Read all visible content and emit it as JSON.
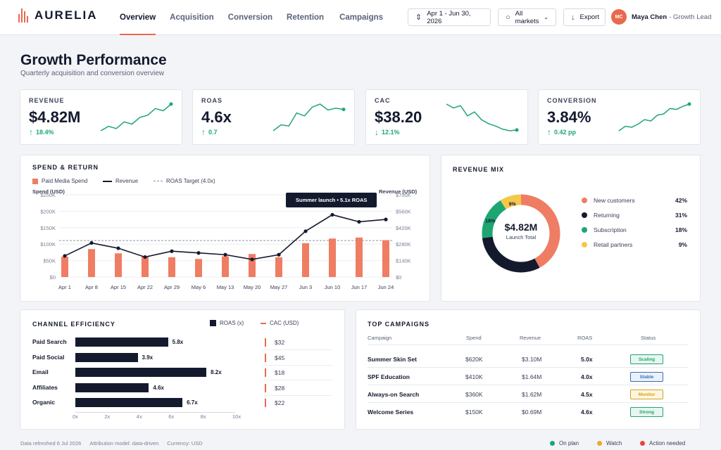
{
  "brand": {
    "name": "AURELIA",
    "accent": "#e8694d",
    "dark": "#141a2e"
  },
  "nav": {
    "tabs": [
      {
        "label": "Overview",
        "active": true
      },
      {
        "label": "Acquisition",
        "active": false
      },
      {
        "label": "Conversion",
        "active": false
      },
      {
        "label": "Retention",
        "active": false
      },
      {
        "label": "Campaigns",
        "active": false
      }
    ]
  },
  "controls": {
    "date_range": "Apr 1 - Jun 30, 2026",
    "market": "All markets",
    "export": "Export"
  },
  "user": {
    "initials": "MC",
    "name": "Maya Chen",
    "role": "- Growth Lead"
  },
  "page": {
    "title": "Growth Performance",
    "subtitle": "Quarterly acquisition and conversion overview"
  },
  "kpis": [
    {
      "label": "REVENUE",
      "value": "$4.82M",
      "delta": "18.4%",
      "direction": "up",
      "color": "#1ea672",
      "spark": [
        2,
        3,
        2.5,
        4,
        3.5,
        5,
        5.5,
        7,
        6.5,
        8
      ]
    },
    {
      "label": "ROAS",
      "value": "4.6x",
      "delta": "0.7",
      "direction": "up",
      "color": "#1ea672",
      "spark": [
        2,
        3,
        2.8,
        5,
        4.5,
        6,
        6.5,
        5.5,
        5.8,
        5.6
      ]
    },
    {
      "label": "CAC",
      "value": "$38.20",
      "delta": "12.1%",
      "direction": "down",
      "color": "#1ea672",
      "spark": [
        8,
        7.5,
        7.8,
        6.5,
        7,
        6,
        5.5,
        5.2,
        4.8,
        4.6,
        4.7
      ]
    },
    {
      "label": "CONVERSION",
      "value": "3.84%",
      "delta": "0.42 pp",
      "direction": "up",
      "color": "#1ea672",
      "spark": [
        2,
        3,
        2.8,
        3.5,
        4.5,
        4.2,
        5.5,
        5.8,
        7,
        6.8,
        7.5,
        8
      ]
    }
  ],
  "spend_return": {
    "title": "SPEND & RETURN",
    "legend": {
      "spend": "Paid Media Spend",
      "revenue": "Revenue",
      "target": "ROAS Target (4.0x)"
    },
    "left_axis_title": "Spend (USD)",
    "right_axis_title": "Revenue (USD)",
    "tooltip": "Summer launch • 5.1x ROAS",
    "left_ticks": [
      "$0",
      "$50K",
      "$100K",
      "$150K",
      "$200K",
      "$250K"
    ],
    "right_ticks": [
      "$0",
      "$140K",
      "$280K",
      "$420K",
      "$560K",
      "$700K"
    ]
  },
  "chart_data": {
    "type": "bar",
    "categories": [
      "Apr 1",
      "Apr 8",
      "Apr 15",
      "Apr 22",
      "Apr 29",
      "May 6",
      "May 13",
      "May 20",
      "May 27",
      "Jun 3",
      "Jun 10",
      "Jun 17",
      "Jun 24"
    ],
    "series": [
      {
        "name": "Paid Media Spend",
        "values": [
          62000,
          85000,
          72000,
          62000,
          60000,
          55000,
          63000,
          70000,
          60000,
          103000,
          117000,
          120000,
          112000
        ],
        "axis": "left",
        "color": "#ef7d63"
      },
      {
        "name": "Revenue",
        "values": [
          180000,
          290000,
          245000,
          170000,
          220000,
          205000,
          190000,
          150000,
          190000,
          390000,
          530000,
          470000,
          490000
        ],
        "axis": "right",
        "color": "#141a2e"
      },
      {
        "name": "ROAS Target (4.0x)",
        "values": [
          310000,
          310000,
          310000,
          310000,
          310000,
          310000,
          310000,
          310000,
          310000,
          310000,
          310000,
          310000,
          310000
        ],
        "axis": "right",
        "color": "#8e94a5"
      }
    ],
    "ylim_left": [
      0,
      250000
    ],
    "ylim_right": [
      0,
      700000
    ],
    "grid": true,
    "legend_position": "top-left"
  },
  "revenue_mix": {
    "title": "REVENUE MIX",
    "center_value": "$4.82M",
    "center_label": "Launch Total",
    "segments": [
      {
        "label": "New customers",
        "pct": "42%",
        "value": 42,
        "color": "#ef7d63"
      },
      {
        "label": "Returning",
        "pct": "31%",
        "value": 31,
        "color": "#141a2e"
      },
      {
        "label": "Subscription",
        "pct": "18%",
        "value": 18,
        "color": "#1ea672"
      },
      {
        "label": "Retail partners",
        "pct": "9%",
        "value": 9,
        "color": "#f5c84a"
      }
    ]
  },
  "channel_efficiency": {
    "title": "CHANNEL EFFICIENCY",
    "legend_roas": "ROAS (x)",
    "legend_cac": "CAC (USD)",
    "axis_ticks": [
      "0x",
      "2x",
      "4x",
      "6x",
      "8x",
      "10x"
    ],
    "axis_max": 10,
    "rows": [
      {
        "name": "Paid Search",
        "roas": 5.8,
        "roas_label": "5.8x",
        "cac": "$32"
      },
      {
        "name": "Paid Social",
        "roas": 3.9,
        "roas_label": "3.9x",
        "cac": "$45"
      },
      {
        "name": "Email",
        "roas": 8.2,
        "roas_label": "8.2x",
        "cac": "$18"
      },
      {
        "name": "Affiliates",
        "roas": 4.6,
        "roas_label": "4.6x",
        "cac": "$28"
      },
      {
        "name": "Organic",
        "roas": 6.7,
        "roas_label": "6.7x",
        "cac": "$22"
      }
    ]
  },
  "top_campaigns": {
    "title": "TOP CAMPAIGNS",
    "headers": {
      "campaign": "Campaign",
      "spend": "Spend",
      "revenue": "Revenue",
      "roas": "ROAS",
      "status": "Status"
    },
    "rows": [
      {
        "campaign": "Summer Skin Set",
        "spend": "$620K",
        "revenue": "$3.10M",
        "roas": "5.0x",
        "status": "Scaling",
        "status_color": "#1ea672",
        "status_bg": "#e8f6ef"
      },
      {
        "campaign": "SPF Education",
        "spend": "$410K",
        "revenue": "$1.64M",
        "roas": "4.0x",
        "status": "Stable",
        "status_color": "#3b6fb6",
        "status_bg": "#eaf1fa"
      },
      {
        "campaign": "Always-on Search",
        "spend": "$360K",
        "revenue": "$1.62M",
        "roas": "4.5x",
        "status": "Monitor",
        "status_color": "#d4a118",
        "status_bg": "#fdf6e1"
      },
      {
        "campaign": "Welcome Series",
        "spend": "$150K",
        "revenue": "$0.69M",
        "roas": "4.6x",
        "status": "Strong",
        "status_color": "#1ea672",
        "status_bg": "#e8f6ef"
      }
    ]
  },
  "footer": {
    "refreshed": "Data refreshed 6 Jul 2026",
    "attribution": "Attribution model: data-driven",
    "currency": "Currency: USD",
    "legend": [
      {
        "label": "On plan",
        "color": "#1ea672"
      },
      {
        "label": "Watch",
        "color": "#f0a92e"
      },
      {
        "label": "Action needed",
        "color": "#e04a3c"
      }
    ]
  }
}
